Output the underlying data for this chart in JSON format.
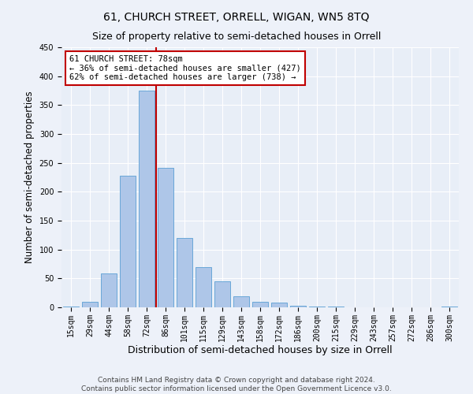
{
  "title": "61, CHURCH STREET, ORRELL, WIGAN, WN5 8TQ",
  "subtitle": "Size of property relative to semi-detached houses in Orrell",
  "xlabel": "Distribution of semi-detached houses by size in Orrell",
  "ylabel": "Number of semi-detached properties",
  "categories": [
    "15sqm",
    "29sqm",
    "44sqm",
    "58sqm",
    "72sqm",
    "86sqm",
    "101sqm",
    "115sqm",
    "129sqm",
    "143sqm",
    "158sqm",
    "172sqm",
    "186sqm",
    "200sqm",
    "215sqm",
    "229sqm",
    "243sqm",
    "257sqm",
    "272sqm",
    "286sqm",
    "300sqm"
  ],
  "values": [
    2,
    10,
    58,
    228,
    375,
    242,
    120,
    70,
    45,
    19,
    10,
    8,
    3,
    1,
    2,
    0,
    0,
    0,
    0,
    0,
    1
  ],
  "bar_color": "#aec6e8",
  "bar_edge_color": "#5a9fd4",
  "highlight_line_index": 4,
  "highlight_color": "#c00000",
  "property_label": "61 CHURCH STREET: 78sqm",
  "pct_smaller": 36,
  "count_smaller": 427,
  "pct_larger": 62,
  "count_larger": 738,
  "annotation_box_color": "#ffffff",
  "annotation_box_edge": "#c00000",
  "ylim": [
    0,
    450
  ],
  "yticks": [
    0,
    50,
    100,
    150,
    200,
    250,
    300,
    350,
    400,
    450
  ],
  "footer1": "Contains HM Land Registry data © Crown copyright and database right 2024.",
  "footer2": "Contains public sector information licensed under the Open Government Licence v3.0.",
  "bg_color": "#e8eef7",
  "fig_bg_color": "#edf1f9",
  "title_fontsize": 10,
  "subtitle_fontsize": 9,
  "axis_label_fontsize": 8.5,
  "tick_fontsize": 7,
  "footer_fontsize": 6.5,
  "annotation_fontsize": 7.5
}
